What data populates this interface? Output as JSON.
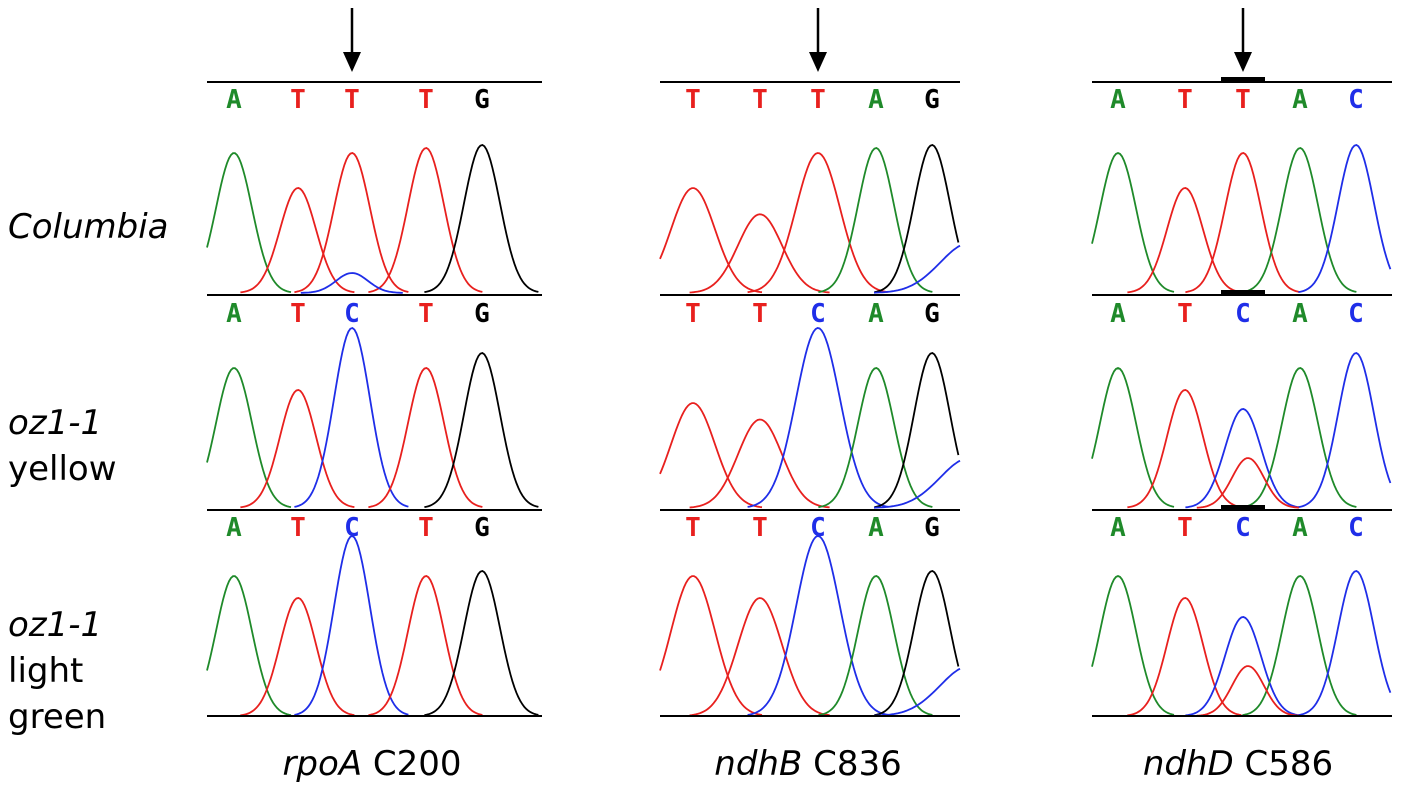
{
  "colors": {
    "A": "#1f8a2a",
    "T": "#e8201e",
    "C": "#1f2ee8",
    "G": "#000000"
  },
  "rows": [
    {
      "label_italic": "Columbia",
      "label_plain": ""
    },
    {
      "label_italic": "oz1-1",
      "label_plain": "yellow"
    },
    {
      "label_italic": "oz1-1",
      "label_plain": "light green"
    }
  ],
  "columns": [
    {
      "gene": "rpoA",
      "site": "C200",
      "tracks": [
        {
          "bases": [
            "A",
            "T",
            "T",
            "T",
            "G"
          ]
        },
        {
          "bases": [
            "A",
            "T",
            "C",
            "T",
            "G"
          ]
        },
        {
          "bases": [
            "A",
            "T",
            "C",
            "T",
            "G"
          ]
        }
      ]
    },
    {
      "gene": "ndhB",
      "site": "C836",
      "tracks": [
        {
          "bases": [
            "T",
            "T",
            "T",
            "A",
            "G"
          ]
        },
        {
          "bases": [
            "T",
            "T",
            "C",
            "A",
            "G"
          ]
        },
        {
          "bases": [
            "T",
            "T",
            "C",
            "A",
            "G"
          ]
        }
      ]
    },
    {
      "gene": "ndhD",
      "site": "C586",
      "tracks": [
        {
          "bases": [
            "A",
            "T",
            "T",
            "A",
            "C"
          ]
        },
        {
          "bases": [
            "A",
            "T",
            "C",
            "A",
            "C"
          ]
        },
        {
          "bases": [
            "A",
            "T",
            "C",
            "A",
            "C"
          ]
        }
      ]
    }
  ]
}
